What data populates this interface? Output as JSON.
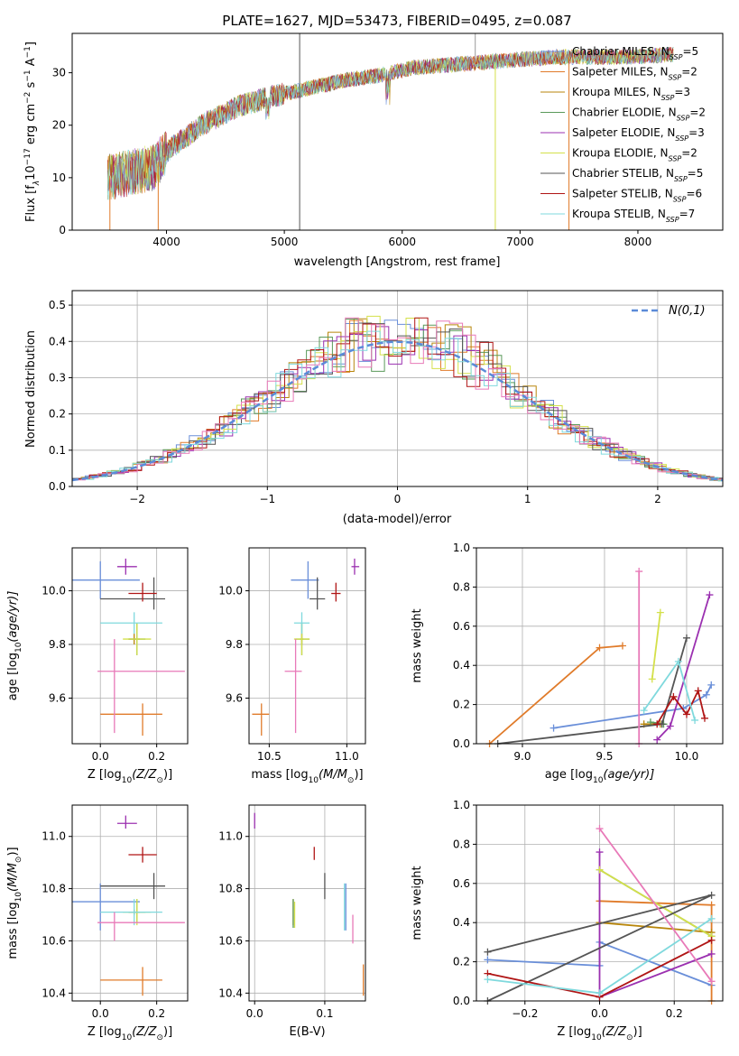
{
  "chart_data": [
    {
      "type": "line",
      "title": "PLATE=1627, MJD=53473, FIBERID=0495, z=0.087",
      "xlabel": "wavelength [Angstrom, rest frame]",
      "ylabel_parts": [
        "Flux [f",
        "λ",
        "10",
        "−17",
        " erg cm",
        "−2",
        " s",
        "−1",
        " A",
        "−1",
        "]"
      ],
      "xlim": [
        3200,
        8720
      ],
      "ylim": [
        0,
        37.5
      ],
      "xticks": [
        4000,
        5000,
        6000,
        7000,
        8000
      ],
      "yticks": [
        0,
        10,
        20,
        30
      ],
      "grid": false,
      "legend_position": "upper-right",
      "series": [
        {
          "imf": "Chabrier",
          "lib": "MILES",
          "n": "5",
          "color": "#6a8fd9"
        },
        {
          "imf": "Salpeter",
          "lib": "MILES",
          "n": "2",
          "color": "#e07b2a"
        },
        {
          "imf": "Kroupa",
          "lib": "MILES",
          "n": "3",
          "color": "#b8860b"
        },
        {
          "imf": "Chabrier",
          "lib": "ELODIE",
          "n": "2",
          "color": "#5a9a5a"
        },
        {
          "imf": "Salpeter",
          "lib": "ELODIE",
          "n": "3",
          "color": "#9b30b0"
        },
        {
          "imf": "Kroupa",
          "lib": "ELODIE",
          "n": "2",
          "color": "#d4e04a"
        },
        {
          "imf": "Chabrier",
          "lib": "STELIB",
          "n": "5",
          "color": "#555555"
        },
        {
          "imf": "Salpeter",
          "lib": "STELIB",
          "n": "6",
          "color": "#b01515"
        },
        {
          "imf": "Kroupa",
          "lib": "STELIB",
          "n": "7",
          "color": "#7fd9dd"
        }
      ],
      "continuum": [
        [
          3500,
          10
        ],
        [
          3700,
          11
        ],
        [
          3900,
          12
        ],
        [
          4000,
          15
        ],
        [
          4300,
          20
        ],
        [
          4600,
          23.5
        ],
        [
          4900,
          25.5
        ],
        [
          5200,
          27
        ],
        [
          5500,
          28.5
        ],
        [
          5800,
          29.5
        ],
        [
          6100,
          31
        ],
        [
          6400,
          31.5
        ],
        [
          6700,
          32
        ],
        [
          7000,
          32.5
        ],
        [
          7300,
          33
        ],
        [
          7600,
          33
        ],
        [
          7900,
          33
        ],
        [
          8300,
          33.5
        ]
      ]
    },
    {
      "type": "step",
      "xlabel": "(data-model)/error",
      "ylabel": "Normed distribution",
      "xlim": [
        -2.5,
        2.5
      ],
      "ylim": [
        0,
        0.54
      ],
      "xticks": [
        -2,
        -1,
        0,
        1,
        2
      ],
      "yticks": [
        0.0,
        0.1,
        0.2,
        0.3,
        0.4,
        0.5
      ],
      "grid": true,
      "legend_label": "N(0,1)",
      "legend_position": "upper-right",
      "gauss_color": "#5b8bd8"
    },
    {
      "type": "scatter",
      "xlabel_prefix": "Z [log",
      "xlabel_suffix": "(Z/Z",
      "ylabel_prefix": "age  [log",
      "ylabel_suffix": "(age/yr)]",
      "xlim": [
        -0.1,
        0.31
      ],
      "ylim": [
        9.43,
        10.16
      ],
      "xticks": [
        0.0,
        0.2
      ],
      "yticks": [
        9.6,
        9.8,
        10.0
      ]
    },
    {
      "type": "scatter",
      "xlabel_prefix": "mass [log",
      "xlabel_suffix": "(M/M",
      "xlim": [
        10.37,
        11.12
      ],
      "ylim": [
        9.43,
        10.16
      ],
      "xticks": [
        10.5,
        11.0
      ],
      "yticks": [
        9.6,
        9.8,
        10.0
      ]
    },
    {
      "type": "line",
      "xlabel_prefix": "age  [log",
      "xlabel_suffix": "(age/yr)]",
      "ylabel": "mass weight",
      "xlim": [
        8.72,
        10.22
      ],
      "ylim": [
        0,
        1.0
      ],
      "xticks": [
        9.0,
        9.5,
        10.0
      ],
      "yticks": [
        0.0,
        0.2,
        0.4,
        0.6,
        0.8,
        1.0
      ]
    },
    {
      "type": "scatter",
      "xlabel_prefix": "Z [log",
      "xlabel_suffix": "(Z/Z",
      "ylabel_prefix": "mass [log",
      "ylabel_suffix": "(M/M",
      "xlim": [
        -0.1,
        0.31
      ],
      "ylim": [
        10.37,
        11.12
      ],
      "xticks": [
        0.0,
        0.2
      ],
      "yticks": [
        10.4,
        10.6,
        10.8,
        11.0
      ]
    },
    {
      "type": "scatter",
      "xlabel": "E(B-V)",
      "xlim": [
        -0.008,
        0.158
      ],
      "ylim": [
        10.37,
        11.12
      ],
      "xticks": [
        0.0,
        0.1
      ],
      "yticks": [
        10.4,
        10.6,
        10.8,
        11.0
      ]
    },
    {
      "type": "line",
      "xlabel_prefix": "Z [log",
      "xlabel_suffix": "(Z/Z",
      "ylabel": "mass weight",
      "xlim": [
        -0.33,
        0.33
      ],
      "ylim": [
        0,
        1.0
      ],
      "xticks": [
        -0.2,
        0.0,
        0.2
      ],
      "yticks": [
        0.0,
        0.2,
        0.4,
        0.6,
        0.8,
        1.0
      ]
    }
  ],
  "models": [
    {
      "color": "#6a8fd9",
      "Z": 0.0,
      "Zerr": [
        -0.1,
        0.14
      ],
      "age": 10.04,
      "ageerr": [
        9.97,
        10.11
      ],
      "mass": 10.75,
      "masserr": [
        10.64,
        10.82
      ],
      "ebv": 0.13,
      "ebverr": [
        10.64,
        10.82
      ],
      "age_w": [
        [
          9.19,
          0.08
        ],
        [
          9.98,
          0.18
        ],
        [
          10.12,
          0.25
        ],
        [
          10.15,
          0.3
        ]
      ],
      "z_w": [
        [
          -0.3,
          0.21
        ],
        [
          0.0,
          0.18
        ],
        [
          0.0,
          0.3
        ],
        [
          0.3,
          0.08
        ]
      ]
    },
    {
      "color": "#e07b2a",
      "Z": 0.15,
      "Zerr": [
        0.0,
        0.22
      ],
      "age": 9.54,
      "ageerr": [
        9.46,
        9.58
      ],
      "mass": 10.45,
      "masserr": [
        10.39,
        10.5
      ],
      "ebv": 0.155,
      "ebverr": [
        10.39,
        10.51
      ],
      "age_w": [
        [
          8.8,
          0.0
        ],
        [
          9.47,
          0.49
        ],
        [
          9.61,
          0.5
        ]
      ],
      "z_w": [
        [
          0.0,
          0.51
        ],
        [
          0.3,
          0.49
        ],
        [
          0.3,
          0.0
        ]
      ]
    },
    {
      "color": "#b8860b",
      "Z": 0.12,
      "Zerr": [
        0.1,
        0.14
      ],
      "age": 9.82,
      "ageerr": [
        9.8,
        9.84
      ],
      "mass": 10.71,
      "masserr": [
        10.7,
        10.72
      ],
      "ebv": 0.055,
      "ebverr": [
        10.66,
        10.76
      ],
      "age_w": [
        [
          9.74,
          0.1
        ],
        [
          9.84,
          0.1
        ]
      ],
      "z_w": [
        [
          0.0,
          0.4
        ],
        [
          0.3,
          0.35
        ]
      ]
    },
    {
      "color": "#5a9a5a",
      "Z": 0.13,
      "Zerr": [
        0.1,
        0.16
      ],
      "age": 9.82,
      "ageerr": [
        9.76,
        9.88
      ],
      "mass": 10.71,
      "masserr": [
        10.67,
        10.76
      ],
      "ebv": 0.055,
      "ebverr": [
        10.65,
        10.76
      ],
      "age_w": [
        [
          9.78,
          0.11
        ],
        [
          9.86,
          0.1
        ]
      ],
      "z_w": [
        [
          0.0,
          0.67
        ],
        [
          0.3,
          0.33
        ]
      ]
    },
    {
      "color": "#9b30b0",
      "Z": 0.09,
      "Zerr": [
        0.06,
        0.13
      ],
      "age": 10.09,
      "ageerr": [
        10.06,
        10.12
      ],
      "mass": 11.05,
      "masserr": [
        11.03,
        11.08
      ],
      "ebv": 0.0,
      "ebverr": [
        11.03,
        11.09
      ],
      "age_w": [
        [
          9.82,
          0.02
        ],
        [
          9.9,
          0.09
        ],
        [
          10.14,
          0.76
        ]
      ],
      "z_w": [
        [
          0.0,
          0.76
        ],
        [
          0.0,
          0.02
        ],
        [
          0.3,
          0.24
        ]
      ]
    },
    {
      "color": "#d4e04a",
      "Z": 0.13,
      "Zerr": [
        0.08,
        0.18
      ],
      "age": 9.82,
      "ageerr": [
        9.76,
        9.88
      ],
      "mass": 10.71,
      "masserr": [
        10.66,
        10.76
      ],
      "ebv": 0.057,
      "ebverr": [
        10.65,
        10.75
      ],
      "age_w": [
        [
          9.79,
          0.33
        ],
        [
          9.84,
          0.67
        ]
      ],
      "z_w": [
        [
          0.0,
          0.67
        ],
        [
          0.3,
          0.33
        ]
      ]
    },
    {
      "color": "#555555",
      "Z": 0.19,
      "Zerr": [
        0.0,
        0.23
      ],
      "age": 9.97,
      "ageerr": [
        9.93,
        10.05
      ],
      "mass": 10.81,
      "masserr": [
        10.76,
        10.86
      ],
      "ebv": 0.1,
      "ebverr": [
        10.76,
        10.86
      ],
      "age_w": [
        [
          8.85,
          0.0
        ],
        [
          9.85,
          0.1
        ],
        [
          10.0,
          0.54
        ]
      ],
      "z_w": [
        [
          -0.3,
          0.0
        ],
        [
          0.3,
          0.54
        ],
        [
          -0.3,
          0.25
        ]
      ]
    },
    {
      "color": "#b01515",
      "Z": 0.15,
      "Zerr": [
        0.1,
        0.2
      ],
      "age": 9.99,
      "ageerr": [
        9.96,
        10.03
      ],
      "mass": 10.93,
      "masserr": [
        10.9,
        10.96
      ],
      "ebv": 0.085,
      "ebverr": [
        10.91,
        10.96
      ],
      "age_w": [
        [
          9.82,
          0.1
        ],
        [
          9.92,
          0.24
        ],
        [
          10.0,
          0.15
        ],
        [
          10.07,
          0.27
        ],
        [
          10.11,
          0.13
        ]
      ],
      "z_w": [
        [
          -0.3,
          0.14
        ],
        [
          0.0,
          0.02
        ],
        [
          0.3,
          0.31
        ]
      ]
    },
    {
      "color": "#7fd9dd",
      "Z": 0.12,
      "Zerr": [
        0.0,
        0.22
      ],
      "age": 9.88,
      "ageerr": [
        9.84,
        9.92
      ],
      "mass": 10.71,
      "masserr": [
        10.66,
        10.76
      ],
      "ebv": 0.128,
      "ebverr": [
        10.64,
        10.82
      ],
      "age_w": [
        [
          9.74,
          0.17
        ],
        [
          9.95,
          0.42
        ],
        [
          10.05,
          0.12
        ]
      ],
      "z_w": [
        [
          -0.3,
          0.11
        ],
        [
          0.0,
          0.04
        ],
        [
          0.3,
          0.42
        ]
      ]
    },
    {
      "color": "#e879b8",
      "Z": 0.05,
      "Zerr": [
        -0.01,
        0.3
      ],
      "age": 9.7,
      "ageerr": [
        9.47,
        9.82
      ],
      "mass": 10.67,
      "masserr": [
        10.6,
        10.71
      ],
      "ebv": 0.14,
      "ebverr": [
        10.59,
        10.7
      ],
      "age_w": [
        [
          9.71,
          0.88
        ],
        [
          9.71,
          0.0
        ]
      ],
      "z_w": [
        [
          0.0,
          0.88
        ],
        [
          0.3,
          0.1
        ]
      ]
    }
  ]
}
